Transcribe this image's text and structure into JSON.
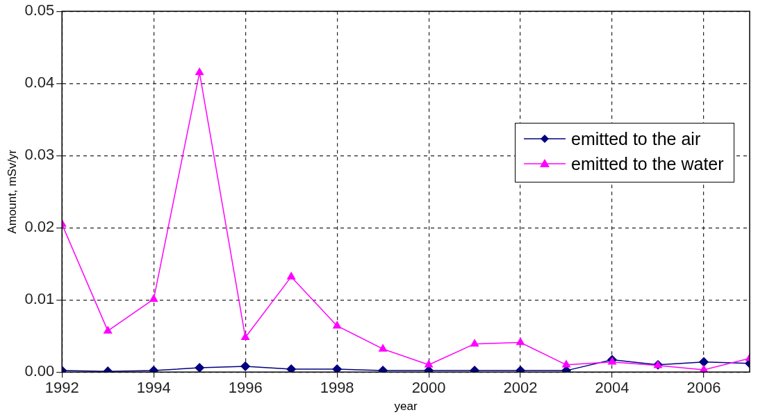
{
  "chart_data": {
    "type": "line",
    "xlabel": "year",
    "ylabel": "Amount, mSv/yr",
    "x": [
      1992,
      1993,
      1994,
      1995,
      1996,
      1997,
      1998,
      1999,
      2000,
      2001,
      2002,
      2003,
      2004,
      2005,
      2006,
      2007
    ],
    "series": [
      {
        "name": "emitted to the air",
        "color": "#000080",
        "marker": "diamond",
        "values": [
          0.0002,
          0.0001,
          0.0002,
          0.0006,
          0.0008,
          0.0004,
          0.0004,
          0.0002,
          0.0002,
          0.0002,
          0.0002,
          0.0002,
          0.0017,
          0.001,
          0.0014,
          0.0012
        ]
      },
      {
        "name": "emitted to the water",
        "color": "#ff00ff",
        "marker": "triangle",
        "values": [
          0.0205,
          0.0057,
          0.0101,
          0.0415,
          0.0048,
          0.0132,
          0.0064,
          0.0032,
          0.001,
          0.0039,
          0.0041,
          0.001,
          0.0014,
          0.0009,
          0.0003,
          0.0019
        ]
      }
    ],
    "xlim": [
      1992,
      2007
    ],
    "xticks": [
      1992,
      1994,
      1996,
      1998,
      2000,
      2002,
      2004,
      2006
    ],
    "ylim": [
      0,
      0.05
    ],
    "yticks": [
      {
        "value": 0,
        "label": "0.00"
      },
      0.01,
      0.02,
      0.03,
      0.04,
      0.05
    ],
    "grid": true,
    "legend": "right",
    "line_style": "solid"
  }
}
